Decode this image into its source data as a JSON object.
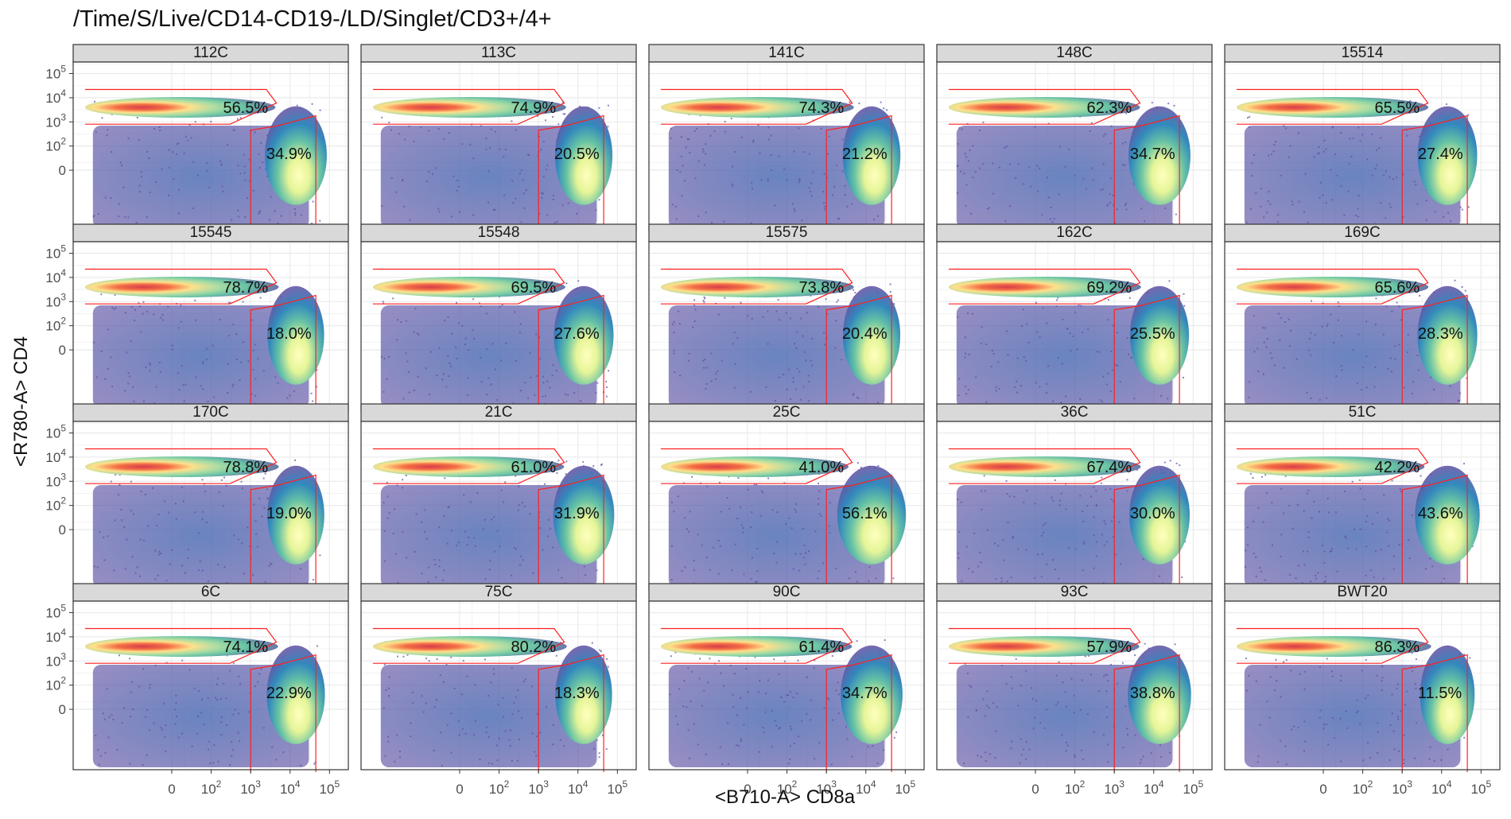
{
  "chart_data": {
    "type": "heatmap",
    "subtype": "faceted flow cytometry density plots with gates",
    "title": "/Time/S/Live/CD14-CD19-/LD/Singlet/CD3+/4+",
    "xlabel": "<B710-A> CD8a",
    "ylabel": "<R780-A> CD4",
    "x_scale": "biexponential (logicle)",
    "y_scale": "biexponential (logicle)",
    "x_ticks": [
      {
        "value": 0,
        "base": "0",
        "exp": ""
      },
      {
        "value": 100,
        "base": "10",
        "exp": "2"
      },
      {
        "value": 1000,
        "base": "10",
        "exp": "3"
      },
      {
        "value": 10000,
        "base": "10",
        "exp": "4"
      },
      {
        "value": 100000,
        "base": "10",
        "exp": "5"
      }
    ],
    "y_ticks": [
      {
        "value": 0,
        "base": "0",
        "exp": ""
      },
      {
        "value": 100,
        "base": "10",
        "exp": "2"
      },
      {
        "value": 1000,
        "base": "10",
        "exp": "3"
      },
      {
        "value": 10000,
        "base": "10",
        "exp": "4"
      },
      {
        "value": 100000,
        "base": "10",
        "exp": "5"
      }
    ],
    "gates": [
      "CD4+ (upper-left gate)",
      "CD8+ (lower-right gate)"
    ],
    "grid": true,
    "colormap": "Spectral (blue low to red high density)",
    "colors": {
      "gate_line": "#ff2020",
      "strip_background": "#d9d9d9",
      "panel_border": "#333333",
      "grid": "#ebebeb"
    },
    "panels": [
      {
        "sample": "112C",
        "cd4_pct": "56.5%",
        "cd8_pct": "34.9%"
      },
      {
        "sample": "113C",
        "cd4_pct": "74.9%",
        "cd8_pct": "20.5%"
      },
      {
        "sample": "141C",
        "cd4_pct": "74.3%",
        "cd8_pct": "21.2%"
      },
      {
        "sample": "148C",
        "cd4_pct": "62.3%",
        "cd8_pct": "34.7%"
      },
      {
        "sample": "15514",
        "cd4_pct": "65.5%",
        "cd8_pct": "27.4%"
      },
      {
        "sample": "15545",
        "cd4_pct": "78.7%",
        "cd8_pct": "18.0%"
      },
      {
        "sample": "15548",
        "cd4_pct": "69.5%",
        "cd8_pct": "27.6%"
      },
      {
        "sample": "15575",
        "cd4_pct": "73.8%",
        "cd8_pct": "20.4%"
      },
      {
        "sample": "162C",
        "cd4_pct": "69.2%",
        "cd8_pct": "25.5%"
      },
      {
        "sample": "169C",
        "cd4_pct": "65.6%",
        "cd8_pct": "28.3%"
      },
      {
        "sample": "170C",
        "cd4_pct": "78.8%",
        "cd8_pct": "19.0%"
      },
      {
        "sample": "21C",
        "cd4_pct": "61.0%",
        "cd8_pct": "31.9%"
      },
      {
        "sample": "25C",
        "cd4_pct": "41.0%",
        "cd8_pct": "56.1%"
      },
      {
        "sample": "36C",
        "cd4_pct": "67.4%",
        "cd8_pct": "30.0%"
      },
      {
        "sample": "51C",
        "cd4_pct": "42.2%",
        "cd8_pct": "43.6%"
      },
      {
        "sample": "6C",
        "cd4_pct": "74.1%",
        "cd8_pct": "22.9%"
      },
      {
        "sample": "75C",
        "cd4_pct": "80.2%",
        "cd8_pct": "18.3%"
      },
      {
        "sample": "90C",
        "cd4_pct": "61.4%",
        "cd8_pct": "34.7%"
      },
      {
        "sample": "93C",
        "cd4_pct": "57.9%",
        "cd8_pct": "38.8%"
      },
      {
        "sample": "BWT20",
        "cd4_pct": "86.3%",
        "cd8_pct": "11.5%"
      }
    ]
  }
}
